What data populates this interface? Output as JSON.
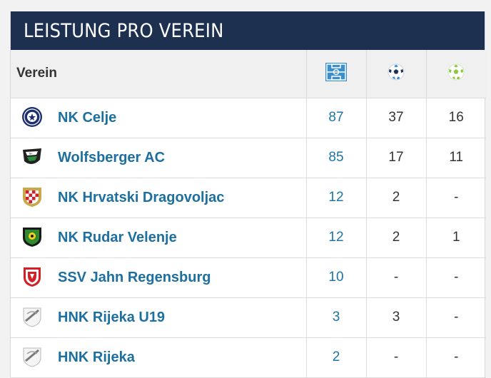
{
  "widget": {
    "title": "LEISTUNG PRO VEREIN",
    "columns": {
      "club": "Verein",
      "appearances_icon": "pitch-icon",
      "goals_icon": "ball-icon",
      "assists_icon": "assist-ball-icon"
    },
    "rows": [
      {
        "club": "NK Celje",
        "crest": "nk-celje-crest",
        "appearances": "87",
        "goals": "37",
        "assists": "16"
      },
      {
        "club": "Wolfsberger AC",
        "crest": "wolfsberger-ac-crest",
        "appearances": "85",
        "goals": "17",
        "assists": "11"
      },
      {
        "club": "NK Hrvatski Dragovoljac",
        "crest": "nk-hrvatski-dragovoljac-crest",
        "appearances": "12",
        "goals": "2",
        "assists": "-"
      },
      {
        "club": "NK Rudar Velenje",
        "crest": "nk-rudar-velenje-crest",
        "appearances": "12",
        "goals": "2",
        "assists": "1"
      },
      {
        "club": "SSV Jahn Regensburg",
        "crest": "ssv-jahn-regensburg-crest",
        "appearances": "10",
        "goals": "-",
        "assists": "-"
      },
      {
        "club": "HNK Rijeka U19",
        "crest": "hnk-rijeka-crest",
        "appearances": "3",
        "goals": "3",
        "assists": "-"
      },
      {
        "club": "HNK Rijeka",
        "crest": "hnk-rijeka-crest",
        "appearances": "2",
        "goals": "-",
        "assists": "-"
      }
    ]
  },
  "colors": {
    "header_bg": "#1d3050",
    "link": "#1d6f9f",
    "icon_blue": "#3d8fca",
    "assist_green": "#8cc63f"
  }
}
